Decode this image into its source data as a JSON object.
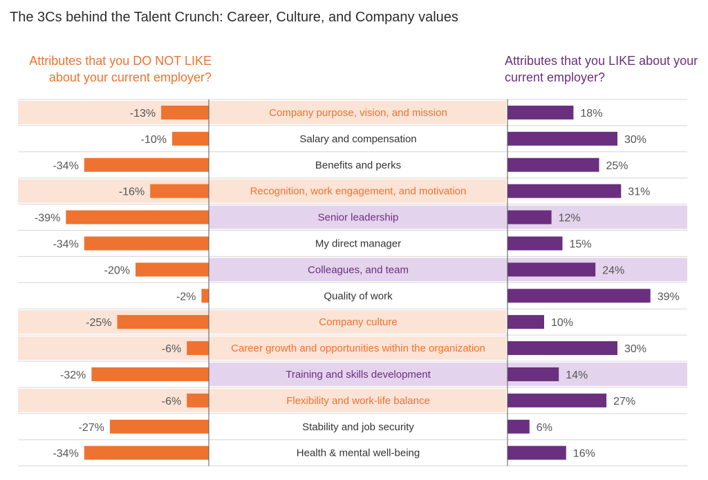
{
  "page": {
    "title": "The 3Cs behind the Talent Crunch: Career, Culture, and Company values",
    "left_heading": "Attributes that you DO NOT LIKE about your current employer?",
    "right_heading": "Attributes that you LIKE about your current employer?"
  },
  "colors": {
    "dislike_bar": "#ee7330",
    "like_bar": "#6a2f7f",
    "company_highlight": "#fbe3d6",
    "culture_highlight": "#e4d3ec",
    "company_text": "#ee7330",
    "culture_text": "#6a2f7f",
    "default_text": "#333333"
  },
  "chart_data": {
    "type": "bar",
    "orientation": "horizontal",
    "layout": "diverging",
    "grid": "horizontal separators",
    "categories": [
      "Company purpose, vision, and mission",
      "Salary and compensation",
      "Benefits and perks",
      "Recognition, work engagement, and motivation",
      "Senior leadership",
      "My direct manager",
      "Colleagues, and team",
      "Quality of work",
      "Company culture",
      "Career growth and opportunities within the organization",
      "Training and skills development",
      "Flexibility and work-life balance",
      "Stability and job security",
      "Health & mental well-being"
    ],
    "highlight": [
      "company",
      "none",
      "none",
      "company",
      "culture",
      "none",
      "culture",
      "none",
      "company",
      "company",
      "culture",
      "company",
      "none",
      "none"
    ],
    "series": [
      {
        "name": "Attributes that you DO NOT LIKE about your current employer?",
        "values": [
          -13,
          -10,
          -34,
          -16,
          -39,
          -34,
          -20,
          -2,
          -25,
          -6,
          -32,
          -6,
          -27,
          -34
        ],
        "labels": [
          "-13%",
          "-10%",
          "-34%",
          "-16%",
          "-39%",
          "-34%",
          "-20%",
          "-2%",
          "-25%",
          "-6%",
          "-32%",
          "-6%",
          "-27%",
          "-34%"
        ]
      },
      {
        "name": "Attributes that you LIKE about your current employer?",
        "values": [
          18,
          30,
          25,
          31,
          12,
          15,
          24,
          39,
          10,
          30,
          14,
          27,
          6,
          16
        ],
        "labels": [
          "18%",
          "30%",
          "25%",
          "31%",
          "12%",
          "15%",
          "24%",
          "39%",
          "10%",
          "30%",
          "14%",
          "27%",
          "6%",
          "16%"
        ]
      }
    ]
  }
}
